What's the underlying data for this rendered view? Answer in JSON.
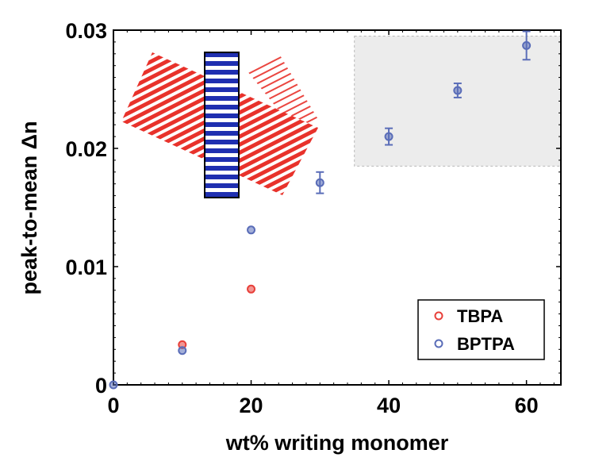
{
  "chart_data": {
    "type": "scatter",
    "xlabel": "wt% writing monomer",
    "ylabel": "peak-to-mean Δn",
    "xlim": [
      0,
      65
    ],
    "ylim": [
      0,
      0.03
    ],
    "x_ticks": [
      {
        "value": 0,
        "label": "0"
      },
      {
        "value": 20,
        "label": "20"
      },
      {
        "value": 40,
        "label": "40"
      },
      {
        "value": 60,
        "label": "60"
      }
    ],
    "y_ticks": [
      {
        "value": 0,
        "label": "0"
      },
      {
        "value": 0.01,
        "label": "0.01"
      },
      {
        "value": 0.02,
        "label": "0.02"
      },
      {
        "value": 0.03,
        "label": "0.03"
      }
    ],
    "legend_position": "bottom-right",
    "series": [
      {
        "name": "TBPA",
        "color": "#e8403a",
        "points": [
          {
            "x": 10,
            "y": 0.0034,
            "err": 0
          },
          {
            "x": 20,
            "y": 0.0081,
            "err": 0
          }
        ]
      },
      {
        "name": "BPTPA",
        "color": "#5a6db8",
        "points": [
          {
            "x": 0,
            "y": 0.0,
            "err": 0
          },
          {
            "x": 10,
            "y": 0.0029,
            "err": 0
          },
          {
            "x": 20,
            "y": 0.0131,
            "err": 0
          },
          {
            "x": 30,
            "y": 0.0171,
            "err": 0.0009
          },
          {
            "x": 40,
            "y": 0.021,
            "err": 0.0007
          },
          {
            "x": 50,
            "y": 0.0249,
            "err": 0.0006
          },
          {
            "x": 60,
            "y": 0.0287,
            "err": 0.0012
          }
        ]
      }
    ],
    "highlight_region": {
      "x": [
        35,
        65
      ],
      "y": [
        0.0185,
        0.0295
      ],
      "color": "#ececec"
    }
  }
}
